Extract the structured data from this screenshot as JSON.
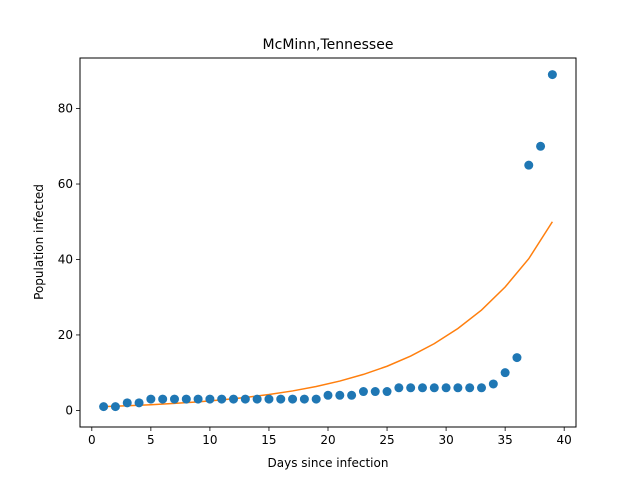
{
  "chart_data": {
    "type": "scatter",
    "title": "McMinn,Tennessee",
    "xlabel": "Days since infection",
    "ylabel": "Population infected",
    "xlim": [
      -1,
      41
    ],
    "ylim": [
      -4.4,
      93.4
    ],
    "xticks": [
      0,
      5,
      10,
      15,
      20,
      25,
      30,
      35,
      40
    ],
    "yticks": [
      0,
      20,
      40,
      60,
      80
    ],
    "grid": false,
    "series": [
      {
        "kind": "scatter",
        "color": "#1f77b4",
        "x": [
          1,
          2,
          3,
          4,
          5,
          6,
          7,
          8,
          9,
          10,
          11,
          12,
          13,
          14,
          15,
          16,
          17,
          18,
          19,
          20,
          21,
          22,
          23,
          24,
          25,
          26,
          27,
          28,
          29,
          30,
          31,
          32,
          33,
          34,
          35,
          36,
          37,
          38,
          39
        ],
        "y": [
          1,
          1,
          2,
          2,
          3,
          3,
          3,
          3,
          3,
          3,
          3,
          3,
          3,
          3,
          3,
          3,
          3,
          3,
          3,
          4,
          4,
          4,
          5,
          5,
          5,
          6,
          6,
          6,
          6,
          6,
          6,
          6,
          6,
          7,
          10,
          14,
          65,
          70,
          89
        ]
      },
      {
        "kind": "line",
        "color": "#ff7f0e",
        "x": [
          1,
          3,
          5,
          7,
          9,
          11,
          13,
          15,
          17,
          19,
          21,
          23,
          25,
          27,
          29,
          31,
          33,
          35,
          37,
          39
        ],
        "y": [
          1.0,
          1.23,
          1.51,
          1.85,
          2.27,
          2.79,
          3.42,
          4.2,
          5.16,
          6.33,
          7.77,
          9.54,
          11.7,
          14.4,
          17.7,
          21.7,
          26.6,
          32.7,
          40.2,
          50.0
        ]
      }
    ]
  }
}
